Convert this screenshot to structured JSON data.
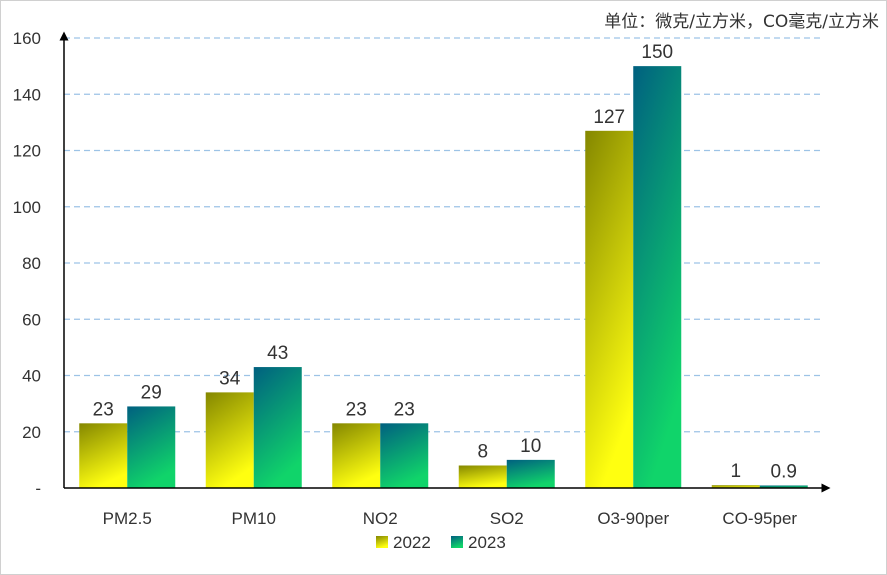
{
  "chart_data": {
    "type": "bar",
    "unit_note": "单位：微克/立方米，CO毫克/立方米",
    "categories": [
      "PM2.5",
      "PM10",
      "NO2",
      "SO2",
      "O3-90per",
      "CO-95per"
    ],
    "series": [
      {
        "name": "2022",
        "values": [
          23,
          34,
          23,
          8,
          127,
          1
        ],
        "labels": [
          "23",
          "34",
          "23",
          "8",
          "127",
          "1"
        ]
      },
      {
        "name": "2023",
        "values": [
          29,
          43,
          23,
          10,
          150,
          0.9
        ],
        "labels": [
          "29",
          "43",
          "23",
          "10",
          "150",
          "0.9"
        ]
      }
    ],
    "yticks": [
      "-",
      "20",
      "40",
      "60",
      "80",
      "100",
      "120",
      "140",
      "160"
    ],
    "ylim": [
      0,
      160
    ],
    "grid": true,
    "legend_position": "bottom",
    "colors": {
      "s2022_top": "#848700",
      "s2022_bottom": "#ffff10",
      "s2023_top": "#006080",
      "s2023_bottom": "#10d46a",
      "grid": "#9dc3e6",
      "axis": "#000000",
      "text": "#333333"
    }
  }
}
